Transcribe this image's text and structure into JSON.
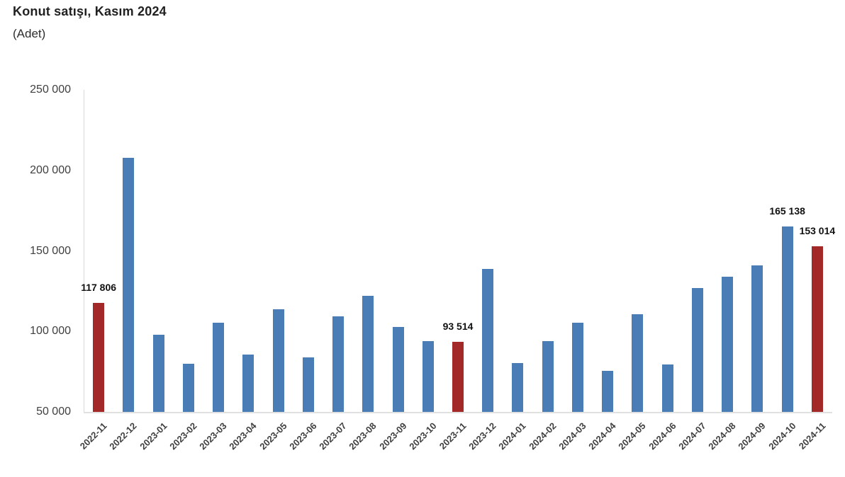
{
  "page": {
    "title": "Konut satışı, Kasım 2024",
    "subtitle": "(Adet)"
  },
  "chart_data": {
    "type": "bar",
    "title": "Konut satışı, Kasım 2024",
    "subtitle": "(Adet)",
    "ylabel": "Adet",
    "xlabel": "",
    "grid": false,
    "legend": false,
    "ylim": [
      50000,
      250000
    ],
    "y_ticks": [
      {
        "value": 250000,
        "label": "250 000"
      },
      {
        "value": 200000,
        "label": "200 000"
      },
      {
        "value": 150000,
        "label": "150 000"
      },
      {
        "value": 100000,
        "label": "100 000"
      },
      {
        "value": 50000,
        "label": "50 000"
      }
    ],
    "categories": [
      "2022-11",
      "2022-12",
      "2023-01",
      "2023-02",
      "2023-03",
      "2023-04",
      "2023-05",
      "2023-06",
      "2023-07",
      "2023-08",
      "2023-09",
      "2023-10",
      "2023-11",
      "2023-12",
      "2024-01",
      "2024-02",
      "2024-03",
      "2024-04",
      "2024-05",
      "2024-06",
      "2024-07",
      "2024-08",
      "2024-09",
      "2024-10",
      "2024-11"
    ],
    "values": [
      117806,
      207963,
      97708,
      80031,
      105476,
      85652,
      113606,
      83636,
      109548,
      122091,
      102656,
      93761,
      93514,
      138577,
      80308,
      93902,
      105394,
      75569,
      110588,
      79313,
      127088,
      134155,
      140919,
      165138,
      153014
    ],
    "highlighted_categories": [
      "2022-11",
      "2023-11",
      "2024-11"
    ],
    "data_labels": {
      "2022-11": "117 806",
      "2023-11": "93 514",
      "2024-10": "165 138",
      "2024-11": "153 014"
    },
    "colors": {
      "bar": "#4A7CB5",
      "highlight": "#A32929",
      "axis_line": "#d9d9d9",
      "tick_text": "#3f3f3f",
      "label_text": "#111111"
    }
  }
}
